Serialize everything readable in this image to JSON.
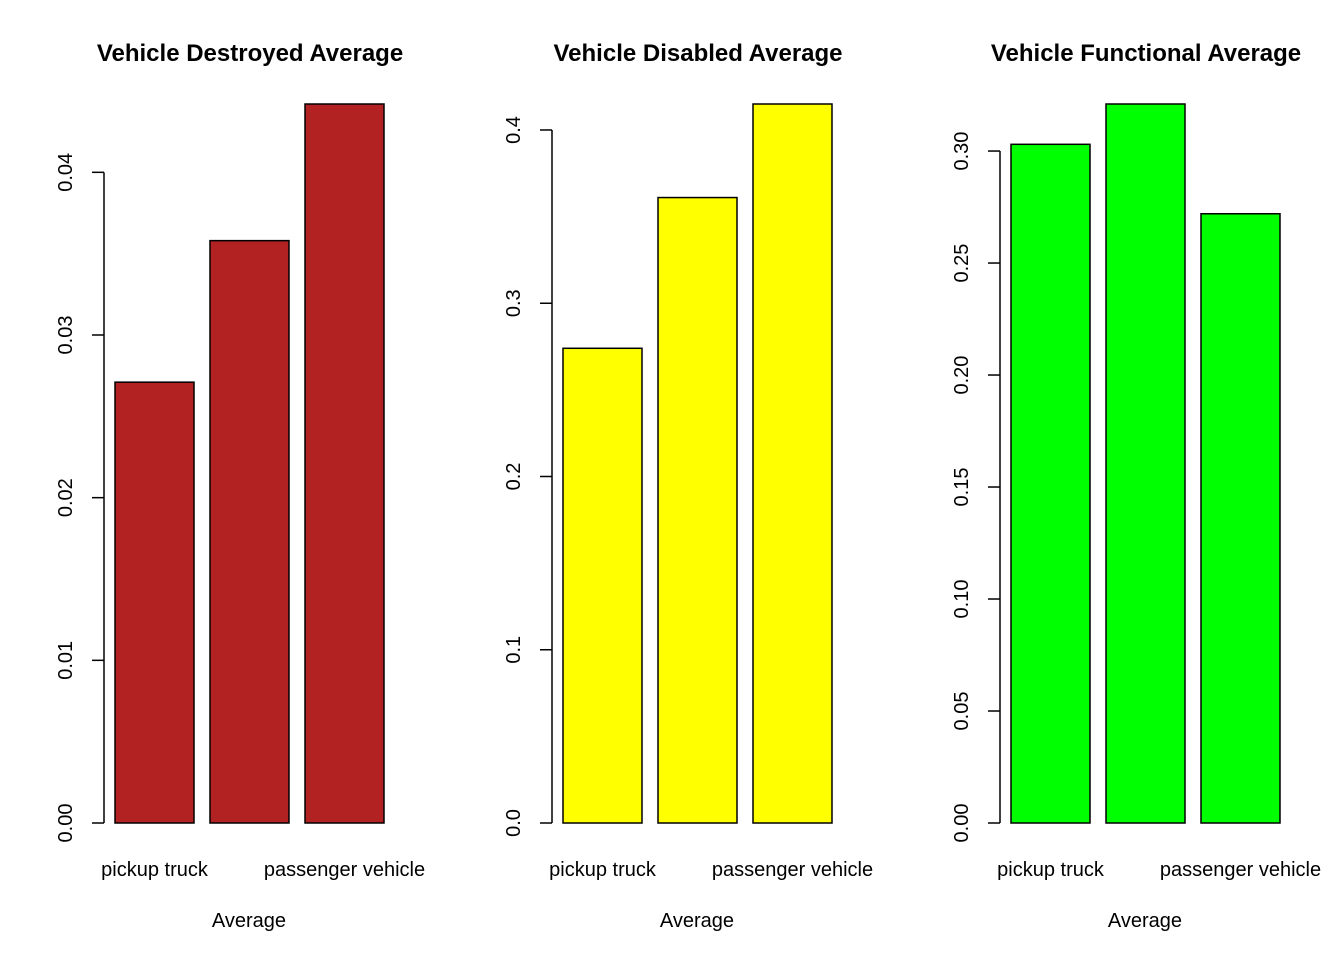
{
  "chart_data": [
    {
      "type": "bar",
      "title": "Vehicle Destroyed Average",
      "xlabel": "Average",
      "ylabel": "",
      "categories": [
        "pickup truck",
        "",
        "passenger vehicle"
      ],
      "values": [
        0.0271,
        0.0358,
        0.0442
      ],
      "yticks": [
        "0.00",
        "0.01",
        "0.02",
        "0.03",
        "0.04"
      ],
      "ylim": [
        0,
        0.0442
      ],
      "color": "#B22222",
      "grid": false,
      "legend": "none"
    },
    {
      "type": "bar",
      "title": "Vehicle Disabled Average",
      "xlabel": "Average",
      "ylabel": "",
      "categories": [
        "pickup truck",
        "",
        "passenger vehicle"
      ],
      "values": [
        0.274,
        0.361,
        0.415
      ],
      "yticks": [
        "0.0",
        "0.1",
        "0.2",
        "0.3",
        "0.4"
      ],
      "ylim": [
        0,
        0.415
      ],
      "color": "#FFFF00",
      "grid": false,
      "legend": "none"
    },
    {
      "type": "bar",
      "title": "Vehicle Functional Average",
      "xlabel": "Average",
      "ylabel": "",
      "categories": [
        "pickup truck",
        "",
        "passenger vehicle"
      ],
      "values": [
        0.303,
        0.321,
        0.272
      ],
      "yticks": [
        "0.00",
        "0.05",
        "0.10",
        "0.15",
        "0.20",
        "0.25",
        "0.30"
      ],
      "ylim": [
        0,
        0.321
      ],
      "color": "#00FF00",
      "grid": false,
      "legend": "none"
    }
  ]
}
